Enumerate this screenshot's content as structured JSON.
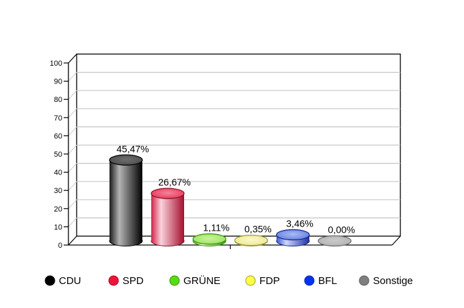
{
  "chart_data": {
    "type": "bar",
    "style": "3d-cylinder",
    "title": "",
    "xlabel": "",
    "ylabel": "",
    "ylim": [
      0,
      100
    ],
    "y_ticks": [
      0,
      10,
      20,
      30,
      40,
      50,
      60,
      70,
      80,
      90,
      100
    ],
    "grid": true,
    "legend_position": "bottom",
    "categories": [
      "CDU",
      "SPD",
      "GRÜNE",
      "FDP",
      "BFL",
      "Sonstige"
    ],
    "values": [
      45.47,
      26.67,
      1.11,
      0.35,
      3.46,
      0.0
    ],
    "value_labels": [
      "45,47%",
      "26,67%",
      "1,11%",
      "0,35%",
      "3,46%",
      "0,00%"
    ],
    "colors": [
      {
        "dark": "#1a1a1a",
        "light": "#b4b4b4",
        "dark2": "#000000",
        "top": "#444444",
        "topLight": "#6e6e6e",
        "rim": "#000000",
        "dot": "#000000",
        "dotRim": "#000000"
      },
      {
        "dark": "#d22148",
        "light": "#fad2dc",
        "dark2": "#a50d2d",
        "top": "#e62448",
        "topLight": "#f4849b",
        "rim": "#871024",
        "dot": "#ec1438",
        "dotRim": "#a50d2d"
      },
      {
        "dark": "#57b81e",
        "light": "#ddf9c2",
        "dark2": "#3f9900",
        "top": "#8fdd55",
        "topLight": "#c8f59a",
        "rim": "#3a9208",
        "dot": "#55dd11",
        "dotRim": "#3a9208"
      },
      {
        "dark": "#cdc95e",
        "light": "#fbf8d6",
        "dark2": "#aaa432",
        "top": "#eae683",
        "topLight": "#faf7cc",
        "rim": "#a19b3a",
        "dot": "#ffff44",
        "dotRim": "#a19b3a"
      },
      {
        "dark": "#3955d2",
        "light": "#ccd8fb",
        "dark2": "#1e30a0",
        "top": "#4f6fe0",
        "topLight": "#aabcf4",
        "rim": "#1c2680",
        "dot": "#0033ee",
        "dotRim": "#1e30a0"
      },
      {
        "dark": "#969696",
        "light": "#e0e0e0",
        "dark2": "#787878",
        "top": "#adadad",
        "topLight": "#cacaca",
        "rim": "#6a6a6a",
        "dot": "#7f7f7f",
        "dotRim": "#5f5f5f"
      }
    ],
    "grid_color": "#c6c6c6",
    "grid_diag_color": "#d2d2d2",
    "axis_color": "#000000"
  },
  "legend": {
    "items": [
      {
        "label": "CDU"
      },
      {
        "label": "SPD"
      },
      {
        "label": "GRÜNE"
      },
      {
        "label": "FDP"
      },
      {
        "label": "BFL"
      },
      {
        "label": "Sonstige"
      }
    ]
  }
}
